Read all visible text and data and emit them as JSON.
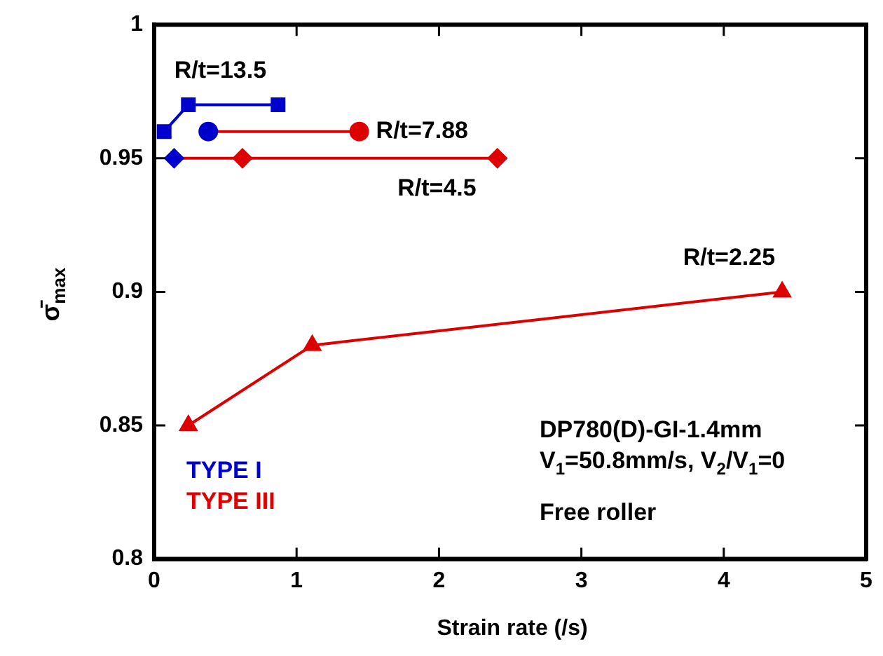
{
  "chart_data": {
    "type": "line",
    "xlabel": "Strain rate (/s)",
    "ylabel": "σ̄$_{max}$",
    "xlim": [
      0,
      5
    ],
    "xticks": [
      0,
      1,
      2,
      3,
      4,
      5
    ],
    "ylim": [
      0.8,
      1
    ],
    "yticks": [
      0.8,
      0.85,
      0.9,
      0.95,
      1
    ],
    "grid": false,
    "legend": false,
    "line_style": "solid",
    "series": [
      {
        "name": "R/t=13.5",
        "color": "#0000cc",
        "marker": "square",
        "x": [
          0.07,
          0.24,
          0.87
        ],
        "values": [
          0.96,
          0.97,
          0.97
        ],
        "colors": [
          "#0000cc",
          "#0000cc",
          "#0000cc"
        ]
      },
      {
        "name": "R/t=7.88",
        "color": "#dd0000",
        "marker": "circle",
        "x": [
          0.38,
          1.44
        ],
        "values": [
          0.96,
          0.96
        ],
        "colors": [
          "#0000cc",
          "#dd0000"
        ]
      },
      {
        "name": "R/t=4.5",
        "color": "#dd0000",
        "marker": "diamond",
        "x": [
          0.14,
          0.62,
          2.41
        ],
        "values": [
          0.95,
          0.95,
          0.95
        ],
        "colors": [
          "#0000cc",
          "#dd0000",
          "#dd0000"
        ]
      },
      {
        "name": "R/t=2.25",
        "color": "#dd0000",
        "marker": "triangle",
        "x": [
          0.24,
          1.11,
          4.41
        ],
        "values": [
          0.85,
          0.88,
          0.9
        ],
        "colors": [
          "#dd0000",
          "#dd0000",
          "#dd0000"
        ]
      }
    ],
    "annotations": [
      "TYPE I",
      "TYPE III",
      "DP780(D)-GI-1.4mm",
      "V$_{1}$=50.8mm/s, V$_{2}$/V$_{1}$=0",
      "Free roller"
    ]
  }
}
